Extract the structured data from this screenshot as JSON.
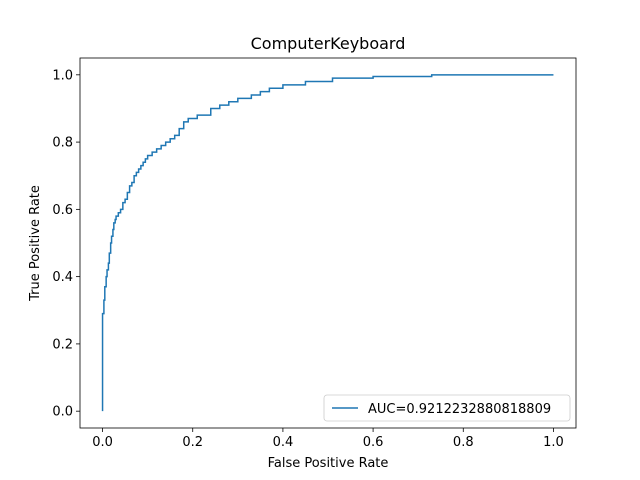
{
  "chart_data": {
    "type": "line",
    "title": "ComputerKeyboard",
    "xlabel": "False Positive Rate",
    "ylabel": "True Positive Rate",
    "xlim": [
      -0.05,
      1.05
    ],
    "ylim": [
      -0.05,
      1.05
    ],
    "xticks": [
      0.0,
      0.2,
      0.4,
      0.6,
      0.8,
      1.0
    ],
    "xtick_labels": [
      "0.0",
      "0.2",
      "0.4",
      "0.6",
      "0.8",
      "1.0"
    ],
    "yticks": [
      0.0,
      0.2,
      0.4,
      0.6,
      0.8,
      1.0
    ],
    "ytick_labels": [
      "0.0",
      "0.2",
      "0.4",
      "0.6",
      "0.8",
      "1.0"
    ],
    "grid": false,
    "legend_position": "lower right",
    "series": [
      {
        "name": "AUC=0.9212232880818809",
        "color": "#1f77b4",
        "step": true,
        "x": [
          0.0,
          0.0,
          0.003,
          0.005,
          0.008,
          0.01,
          0.013,
          0.015,
          0.018,
          0.02,
          0.023,
          0.025,
          0.028,
          0.03,
          0.035,
          0.04,
          0.045,
          0.05,
          0.055,
          0.06,
          0.065,
          0.07,
          0.075,
          0.08,
          0.085,
          0.09,
          0.095,
          0.1,
          0.11,
          0.12,
          0.13,
          0.14,
          0.15,
          0.16,
          0.17,
          0.18,
          0.19,
          0.2,
          0.21,
          0.22,
          0.24,
          0.26,
          0.28,
          0.3,
          0.33,
          0.35,
          0.37,
          0.4,
          0.43,
          0.45,
          0.48,
          0.51,
          0.55,
          0.6,
          0.65,
          0.7,
          0.73,
          0.8,
          0.9,
          1.0
        ],
        "y": [
          0.0,
          0.29,
          0.33,
          0.37,
          0.4,
          0.42,
          0.44,
          0.47,
          0.5,
          0.52,
          0.54,
          0.56,
          0.57,
          0.58,
          0.59,
          0.6,
          0.62,
          0.63,
          0.65,
          0.67,
          0.68,
          0.7,
          0.71,
          0.72,
          0.73,
          0.74,
          0.75,
          0.76,
          0.77,
          0.78,
          0.79,
          0.8,
          0.81,
          0.82,
          0.84,
          0.86,
          0.87,
          0.87,
          0.88,
          0.88,
          0.9,
          0.91,
          0.92,
          0.93,
          0.94,
          0.95,
          0.96,
          0.97,
          0.97,
          0.98,
          0.98,
          0.99,
          0.99,
          0.995,
          0.995,
          0.995,
          1.0,
          1.0,
          1.0,
          1.0
        ]
      }
    ]
  }
}
